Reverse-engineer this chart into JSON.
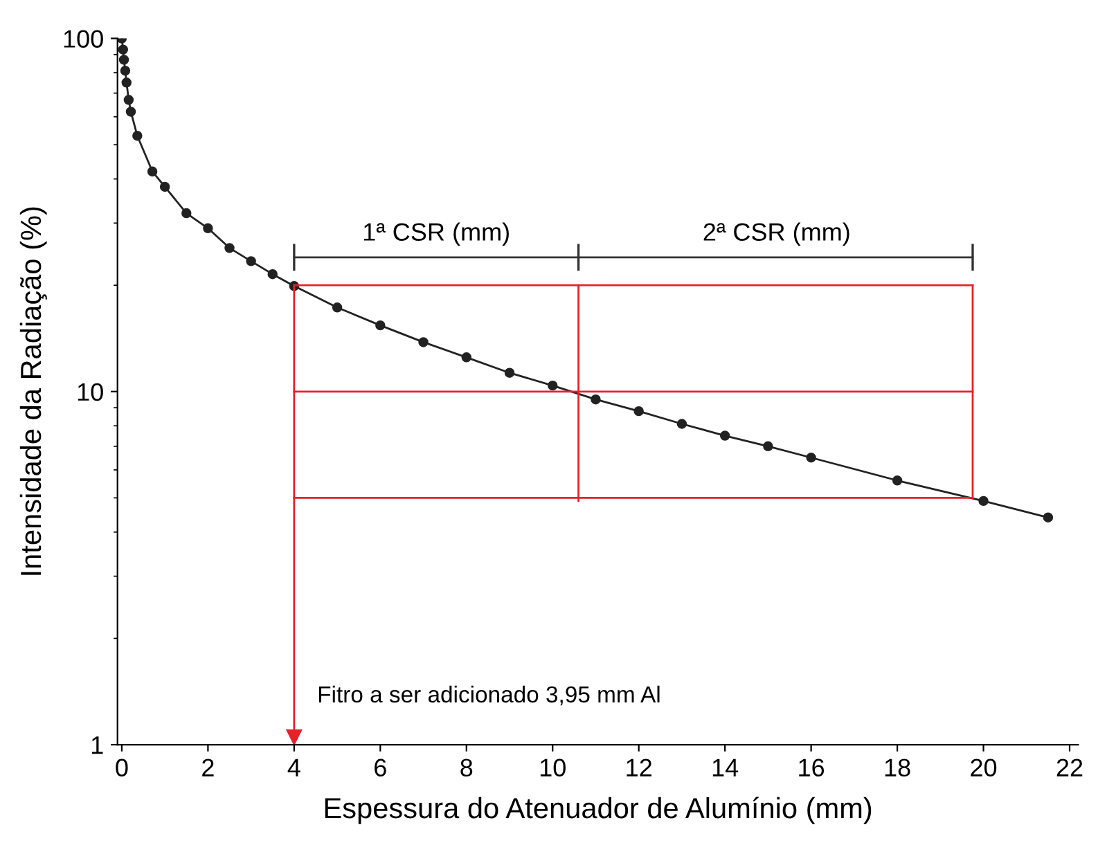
{
  "chart_data": {
    "type": "line",
    "xlabel": "Espessura do Atenuador de Alumínio (mm)",
    "ylabel": "Intensidade da Radiação (%)",
    "log": "y",
    "xlim": [
      -0.1,
      22.2
    ],
    "xticks": [
      0,
      2,
      4,
      6,
      8,
      10,
      12,
      14,
      16,
      18,
      20,
      22
    ],
    "ylim": [
      1,
      100
    ],
    "yticks": [
      1,
      10,
      100
    ],
    "grid": false,
    "legend": false,
    "series": [
      {
        "color": "#222222",
        "marker": "circle",
        "x": [
          0,
          0.03,
          0.05,
          0.08,
          0.11,
          0.16,
          0.21,
          0.36,
          0.71,
          1,
          1.5,
          2,
          2.5,
          3,
          3.5,
          4,
          5,
          6,
          7,
          8,
          9,
          10,
          11,
          12,
          13,
          14,
          15,
          16,
          18,
          20,
          21.5
        ],
        "values": [
          100,
          93,
          87,
          81,
          75,
          67,
          62,
          53,
          42,
          38,
          32,
          29,
          25.5,
          23.4,
          21.5,
          19.9,
          17.3,
          15.4,
          13.8,
          12.5,
          11.3,
          10.4,
          9.5,
          8.8,
          8.1,
          7.5,
          7.0,
          6.5,
          5.6,
          4.9,
          4.4
        ]
      },
      {
        "color": "#e8202a",
        "x": [
          4,
          19.75
        ],
        "values": [
          20,
          20
        ]
      },
      {
        "color": "#e8202a",
        "x": [
          4,
          19.75
        ],
        "values": [
          10,
          10
        ]
      },
      {
        "color": "#e8202a",
        "x": [
          4,
          19.75
        ],
        "values": [
          5,
          5
        ]
      },
      {
        "color": "#e8202a",
        "x": [
          19.75,
          19.75
        ],
        "values": [
          20,
          5
        ]
      },
      {
        "color": "#e8202a",
        "x": [
          10.6,
          10.6
        ],
        "values": [
          20,
          4.9
        ]
      },
      {
        "color": "#e8202a",
        "x": [
          4,
          4
        ],
        "values": [
          20,
          1.05
        ]
      },
      {
        "color": "#333333",
        "x": [
          4,
          10.6,
          19.75
        ],
        "values": [
          24,
          24,
          24
        ]
      }
    ],
    "annotations": [
      {
        "text": "1ª CSR (mm)",
        "x": 7.3,
        "y": 24
      },
      {
        "text": "2ª CSR (mm)",
        "x": 15.2,
        "y": 24
      },
      {
        "text": "Fitro a ser adicionado 3,95 mm Al",
        "x": 4,
        "y": 1.37
      }
    ]
  }
}
